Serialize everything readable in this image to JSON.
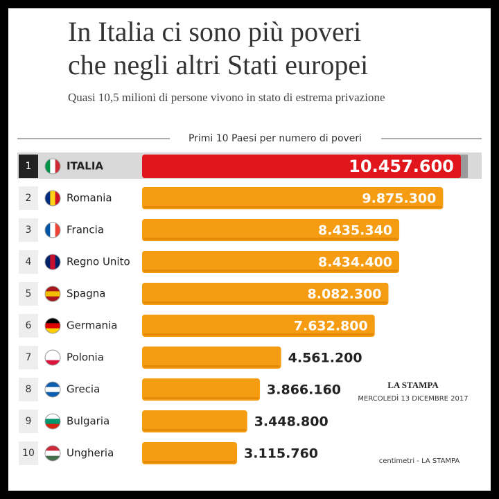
{
  "chart_data": {
    "type": "bar",
    "title": "In Italia ci sono più poveri",
    "title_line2": "che negli altri Stati europei",
    "subtitle": "Quasi 10,5 milioni di persone vivono in stato di estrema privazione",
    "chart_title": "Primi 10 Paesi per numero di poveri",
    "ranks": [
      1,
      2,
      3,
      4,
      5,
      6,
      7,
      8,
      9,
      10
    ],
    "categories": [
      "ITALIA",
      "Romania",
      "Francia",
      "Regno Unito",
      "Spagna",
      "Germania",
      "Polonia",
      "Grecia",
      "Bulgaria",
      "Ungheria"
    ],
    "values": [
      10457600,
      9875300,
      8435340,
      8434400,
      8082300,
      7632800,
      4561200,
      3866160,
      3448800,
      3115760
    ],
    "value_labels": [
      "10.457.600",
      "9.875.300",
      "8.435.340",
      "8.434.400",
      "8.082.300",
      "7.632.800",
      "4.561.200",
      "3.866.160",
      "3.448.800",
      "3.115.760"
    ],
    "colors": [
      "#e0161c",
      "#f59c12",
      "#f59c12",
      "#f59c12",
      "#f59c12",
      "#f59c12",
      "#f59c12",
      "#f59c12",
      "#f59c12",
      "#f59c12"
    ],
    "source": "LA STAMPA",
    "date": "MERCOLEDÌ 13 DICEMBRE 2017",
    "credit": "centimetri - LA STAMPA"
  }
}
